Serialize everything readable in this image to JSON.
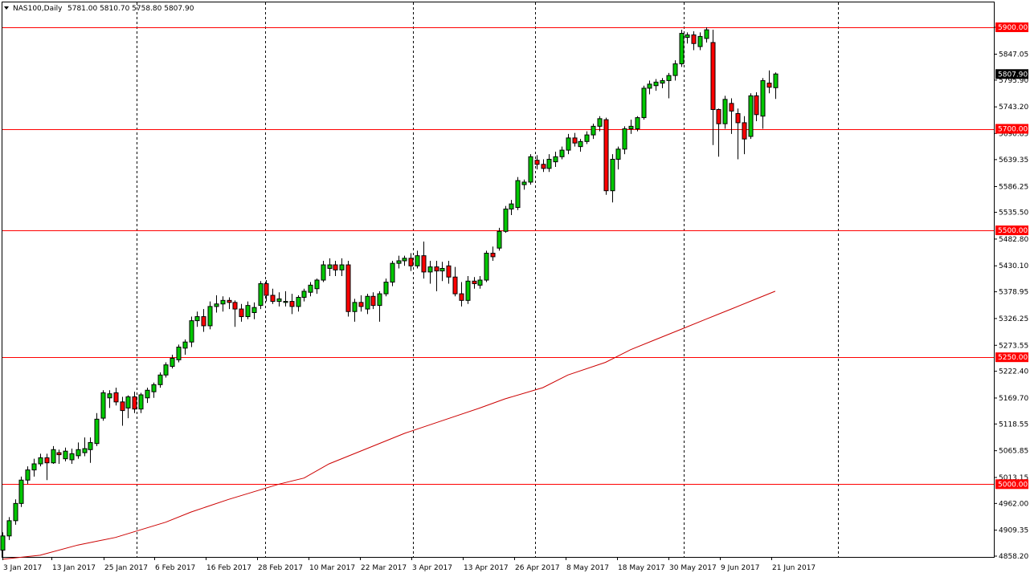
{
  "header": {
    "symbol_timeframe": "NAS100,Daily",
    "ohlc": "5781.00 5810.70 5758.80 5807.90"
  },
  "current_price": "5807.90",
  "colors": {
    "bull": "#00c800",
    "bear": "#ff0000",
    "ma": "#cc0000",
    "level": "#ff0000",
    "grid": "#000000",
    "background": "#ffffff",
    "current_label_bg": "#000000"
  },
  "price_scale": [
    "5900.00",
    "5847.05",
    "5795.90",
    "5743.20",
    "5690.85",
    "5639.35",
    "5586.25",
    "5535.50",
    "5482.80",
    "5430.10",
    "5378.95",
    "5326.25",
    "5273.55",
    "5222.40",
    "5169.70",
    "5118.55",
    "5065.85",
    "5013.15",
    "4962.00",
    "4909.35",
    "4858.20"
  ],
  "date_labels": [
    "3 Jan 2017",
    "13 Jan 2017",
    "25 Jan 2017",
    "6 Feb 2017",
    "16 Feb 2017",
    "28 Feb 2017",
    "10 Mar 2017",
    "22 Mar 2017",
    "3 Apr 2017",
    "13 Apr 2017",
    "26 Apr 2017",
    "8 May 2017",
    "18 May 2017",
    "30 May 2017",
    "9 Jun 2017",
    "21 Jun 2017"
  ],
  "chart_data": {
    "type": "candlestick",
    "title": "NAS100,Daily",
    "ylim": [
      4850,
      5935
    ],
    "x_dates": [
      "3 Jan 2017",
      "13 Jan 2017",
      "25 Jan 2017",
      "6 Feb 2017",
      "16 Feb 2017",
      "28 Feb 2017",
      "10 Mar 2017",
      "22 Mar 2017",
      "3 Apr 2017",
      "13 Apr 2017",
      "26 Apr 2017",
      "8 May 2017",
      "18 May 2017",
      "30 May 2017",
      "9 Jun 2017",
      "21 Jun 2017"
    ],
    "period_separators": [
      "25 Jan 2017",
      "28 Feb 2017",
      "3 Apr 2017",
      "26 Apr 2017",
      "30 May 2017",
      "Jul 2017"
    ],
    "horizontal_levels": [
      {
        "label": "5900.00",
        "value": 5900
      },
      {
        "label": "5700.00",
        "value": 5700
      },
      {
        "label": "5500.00",
        "value": 5500
      },
      {
        "label": "5250.00",
        "value": 5250
      },
      {
        "label": "5000.00",
        "value": 5000
      }
    ],
    "candles": [
      {
        "o": 4870,
        "h": 4905,
        "l": 4856,
        "c": 4898
      },
      {
        "o": 4898,
        "h": 4935,
        "l": 4890,
        "c": 4928
      },
      {
        "o": 4928,
        "h": 4970,
        "l": 4920,
        "c": 4962
      },
      {
        "o": 4962,
        "h": 5015,
        "l": 4955,
        "c": 5008
      },
      {
        "o": 5008,
        "h": 5035,
        "l": 5000,
        "c": 5028
      },
      {
        "o": 5028,
        "h": 5050,
        "l": 5015,
        "c": 5040
      },
      {
        "o": 5040,
        "h": 5060,
        "l": 5035,
        "c": 5052
      },
      {
        "o": 5052,
        "h": 5060,
        "l": 5008,
        "c": 5042
      },
      {
        "o": 5042,
        "h": 5075,
        "l": 5040,
        "c": 5068
      },
      {
        "o": 5062,
        "h": 5068,
        "l": 5040,
        "c": 5058
      },
      {
        "o": 5050,
        "h": 5072,
        "l": 5045,
        "c": 5065
      },
      {
        "o": 5048,
        "h": 5070,
        "l": 5040,
        "c": 5060
      },
      {
        "o": 5056,
        "h": 5082,
        "l": 5050,
        "c": 5068
      },
      {
        "o": 5062,
        "h": 5092,
        "l": 5055,
        "c": 5070
      },
      {
        "o": 5068,
        "h": 5092,
        "l": 5042,
        "c": 5082
      },
      {
        "o": 5080,
        "h": 5140,
        "l": 5075,
        "c": 5128
      },
      {
        "o": 5130,
        "h": 5185,
        "l": 5125,
        "c": 5180
      },
      {
        "o": 5170,
        "h": 5185,
        "l": 5150,
        "c": 5178
      },
      {
        "o": 5180,
        "h": 5190,
        "l": 5155,
        "c": 5162
      },
      {
        "o": 5162,
        "h": 5172,
        "l": 5115,
        "c": 5145
      },
      {
        "o": 5150,
        "h": 5175,
        "l": 5130,
        "c": 5172
      },
      {
        "o": 5172,
        "h": 5182,
        "l": 5140,
        "c": 5148
      },
      {
        "o": 5148,
        "h": 5180,
        "l": 5140,
        "c": 5176
      },
      {
        "o": 5170,
        "h": 5190,
        "l": 5160,
        "c": 5185
      },
      {
        "o": 5182,
        "h": 5200,
        "l": 5170,
        "c": 5196
      },
      {
        "o": 5196,
        "h": 5220,
        "l": 5190,
        "c": 5215
      },
      {
        "o": 5215,
        "h": 5240,
        "l": 5210,
        "c": 5235
      },
      {
        "o": 5232,
        "h": 5255,
        "l": 5228,
        "c": 5248
      },
      {
        "o": 5245,
        "h": 5275,
        "l": 5240,
        "c": 5270
      },
      {
        "o": 5268,
        "h": 5285,
        "l": 5255,
        "c": 5280
      },
      {
        "o": 5280,
        "h": 5330,
        "l": 5270,
        "c": 5322
      },
      {
        "o": 5322,
        "h": 5340,
        "l": 5310,
        "c": 5330
      },
      {
        "o": 5330,
        "h": 5345,
        "l": 5300,
        "c": 5312
      },
      {
        "o": 5312,
        "h": 5360,
        "l": 5305,
        "c": 5350
      },
      {
        "o": 5350,
        "h": 5372,
        "l": 5338,
        "c": 5355
      },
      {
        "o": 5355,
        "h": 5370,
        "l": 5340,
        "c": 5362
      },
      {
        "o": 5362,
        "h": 5368,
        "l": 5345,
        "c": 5358
      },
      {
        "o": 5358,
        "h": 5362,
        "l": 5310,
        "c": 5345
      },
      {
        "o": 5345,
        "h": 5355,
        "l": 5320,
        "c": 5330
      },
      {
        "o": 5330,
        "h": 5360,
        "l": 5325,
        "c": 5352
      },
      {
        "o": 5338,
        "h": 5358,
        "l": 5325,
        "c": 5348
      },
      {
        "o": 5352,
        "h": 5400,
        "l": 5345,
        "c": 5395
      },
      {
        "o": 5395,
        "h": 5402,
        "l": 5360,
        "c": 5372
      },
      {
        "o": 5372,
        "h": 5385,
        "l": 5355,
        "c": 5360
      },
      {
        "o": 5360,
        "h": 5378,
        "l": 5350,
        "c": 5365
      },
      {
        "o": 5358,
        "h": 5380,
        "l": 5350,
        "c": 5360
      },
      {
        "o": 5360,
        "h": 5375,
        "l": 5335,
        "c": 5350
      },
      {
        "o": 5350,
        "h": 5372,
        "l": 5340,
        "c": 5368
      },
      {
        "o": 5368,
        "h": 5385,
        "l": 5360,
        "c": 5380
      },
      {
        "o": 5378,
        "h": 5398,
        "l": 5370,
        "c": 5392
      },
      {
        "o": 5385,
        "h": 5405,
        "l": 5375,
        "c": 5402
      },
      {
        "o": 5402,
        "h": 5440,
        "l": 5398,
        "c": 5432
      },
      {
        "o": 5425,
        "h": 5445,
        "l": 5410,
        "c": 5432
      },
      {
        "o": 5432,
        "h": 5440,
        "l": 5410,
        "c": 5422
      },
      {
        "o": 5422,
        "h": 5445,
        "l": 5410,
        "c": 5432
      },
      {
        "o": 5432,
        "h": 5440,
        "l": 5330,
        "c": 5340
      },
      {
        "o": 5340,
        "h": 5365,
        "l": 5320,
        "c": 5358
      },
      {
        "o": 5358,
        "h": 5372,
        "l": 5340,
        "c": 5350
      },
      {
        "o": 5345,
        "h": 5375,
        "l": 5335,
        "c": 5370
      },
      {
        "o": 5370,
        "h": 5378,
        "l": 5345,
        "c": 5352
      },
      {
        "o": 5352,
        "h": 5380,
        "l": 5320,
        "c": 5375
      },
      {
        "o": 5375,
        "h": 5405,
        "l": 5370,
        "c": 5398
      },
      {
        "o": 5398,
        "h": 5440,
        "l": 5390,
        "c": 5435
      },
      {
        "o": 5435,
        "h": 5450,
        "l": 5425,
        "c": 5440
      },
      {
        "o": 5440,
        "h": 5450,
        "l": 5430,
        "c": 5445
      },
      {
        "o": 5445,
        "h": 5455,
        "l": 5420,
        "c": 5430
      },
      {
        "o": 5430,
        "h": 5460,
        "l": 5425,
        "c": 5450
      },
      {
        "o": 5450,
        "h": 5478,
        "l": 5405,
        "c": 5418
      },
      {
        "o": 5418,
        "h": 5440,
        "l": 5395,
        "c": 5428
      },
      {
        "o": 5428,
        "h": 5440,
        "l": 5380,
        "c": 5420
      },
      {
        "o": 5420,
        "h": 5438,
        "l": 5400,
        "c": 5425
      },
      {
        "o": 5430,
        "h": 5440,
        "l": 5395,
        "c": 5408
      },
      {
        "o": 5408,
        "h": 5428,
        "l": 5370,
        "c": 5375
      },
      {
        "o": 5375,
        "h": 5398,
        "l": 5350,
        "c": 5362
      },
      {
        "o": 5362,
        "h": 5410,
        "l": 5355,
        "c": 5400
      },
      {
        "o": 5400,
        "h": 5408,
        "l": 5385,
        "c": 5395
      },
      {
        "o": 5392,
        "h": 5410,
        "l": 5385,
        "c": 5402
      },
      {
        "o": 5402,
        "h": 5460,
        "l": 5398,
        "c": 5455
      },
      {
        "o": 5455,
        "h": 5468,
        "l": 5440,
        "c": 5448
      },
      {
        "o": 5465,
        "h": 5505,
        "l": 5460,
        "c": 5498
      },
      {
        "o": 5498,
        "h": 5548,
        "l": 5495,
        "c": 5542
      },
      {
        "o": 5542,
        "h": 5560,
        "l": 5530,
        "c": 5552
      },
      {
        "o": 5545,
        "h": 5605,
        "l": 5540,
        "c": 5598
      },
      {
        "o": 5590,
        "h": 5600,
        "l": 5580,
        "c": 5595
      },
      {
        "o": 5595,
        "h": 5650,
        "l": 5590,
        "c": 5645
      },
      {
        "o": 5638,
        "h": 5648,
        "l": 5620,
        "c": 5630
      },
      {
        "o": 5630,
        "h": 5640,
        "l": 5615,
        "c": 5622
      },
      {
        "o": 5622,
        "h": 5650,
        "l": 5615,
        "c": 5640
      },
      {
        "o": 5635,
        "h": 5655,
        "l": 5625,
        "c": 5645
      },
      {
        "o": 5645,
        "h": 5665,
        "l": 5640,
        "c": 5658
      },
      {
        "o": 5658,
        "h": 5690,
        "l": 5650,
        "c": 5682
      },
      {
        "o": 5682,
        "h": 5692,
        "l": 5665,
        "c": 5672
      },
      {
        "o": 5665,
        "h": 5680,
        "l": 5655,
        "c": 5675
      },
      {
        "o": 5675,
        "h": 5695,
        "l": 5670,
        "c": 5688
      },
      {
        "o": 5688,
        "h": 5710,
        "l": 5680,
        "c": 5705
      },
      {
        "o": 5705,
        "h": 5725,
        "l": 5695,
        "c": 5720
      },
      {
        "o": 5718,
        "h": 5722,
        "l": 5570,
        "c": 5578
      },
      {
        "o": 5578,
        "h": 5650,
        "l": 5555,
        "c": 5640
      },
      {
        "o": 5640,
        "h": 5665,
        "l": 5620,
        "c": 5660
      },
      {
        "o": 5660,
        "h": 5705,
        "l": 5650,
        "c": 5700
      },
      {
        "o": 5700,
        "h": 5718,
        "l": 5690,
        "c": 5705
      },
      {
        "o": 5700,
        "h": 5725,
        "l": 5695,
        "c": 5722
      },
      {
        "o": 5722,
        "h": 5785,
        "l": 5718,
        "c": 5780
      },
      {
        "o": 5780,
        "h": 5795,
        "l": 5768,
        "c": 5788
      },
      {
        "o": 5785,
        "h": 5798,
        "l": 5775,
        "c": 5792
      },
      {
        "o": 5790,
        "h": 5800,
        "l": 5780,
        "c": 5795
      },
      {
        "o": 5795,
        "h": 5810,
        "l": 5760,
        "c": 5805
      },
      {
        "o": 5805,
        "h": 5835,
        "l": 5795,
        "c": 5828
      },
      {
        "o": 5828,
        "h": 5895,
        "l": 5822,
        "c": 5888
      },
      {
        "o": 5880,
        "h": 5890,
        "l": 5868,
        "c": 5885
      },
      {
        "o": 5885,
        "h": 5892,
        "l": 5855,
        "c": 5868
      },
      {
        "o": 5862,
        "h": 5890,
        "l": 5855,
        "c": 5882
      },
      {
        "o": 5878,
        "h": 5900,
        "l": 5870,
        "c": 5895
      },
      {
        "o": 5870,
        "h": 5895,
        "l": 5668,
        "c": 5738
      },
      {
        "o": 5738,
        "h": 5740,
        "l": 5645,
        "c": 5710
      },
      {
        "o": 5710,
        "h": 5765,
        "l": 5700,
        "c": 5758
      },
      {
        "o": 5750,
        "h": 5760,
        "l": 5690,
        "c": 5735
      },
      {
        "o": 5730,
        "h": 5740,
        "l": 5640,
        "c": 5712
      },
      {
        "o": 5712,
        "h": 5725,
        "l": 5650,
        "c": 5680
      },
      {
        "o": 5685,
        "h": 5770,
        "l": 5680,
        "c": 5765
      },
      {
        "o": 5765,
        "h": 5772,
        "l": 5715,
        "c": 5728
      },
      {
        "o": 5725,
        "h": 5800,
        "l": 5700,
        "c": 5795
      },
      {
        "o": 5790,
        "h": 5815,
        "l": 5770,
        "c": 5782
      },
      {
        "o": 5781,
        "h": 5811,
        "l": 5759,
        "c": 5808
      }
    ],
    "moving_average": [
      [
        0,
        4852
      ],
      [
        6,
        4860
      ],
      [
        12,
        4880
      ],
      [
        18,
        4895
      ],
      [
        22,
        4910
      ],
      [
        26,
        4925
      ],
      [
        30,
        4945
      ],
      [
        36,
        4970
      ],
      [
        40,
        4985
      ],
      [
        44,
        5000
      ],
      [
        48,
        5012
      ],
      [
        52,
        5040
      ],
      [
        58,
        5070
      ],
      [
        64,
        5100
      ],
      [
        70,
        5125
      ],
      [
        76,
        5150
      ],
      [
        80,
        5168
      ],
      [
        86,
        5190
      ],
      [
        90,
        5215
      ],
      [
        96,
        5240
      ],
      [
        100,
        5265
      ],
      [
        104,
        5285
      ],
      [
        108,
        5305
      ],
      [
        112,
        5325
      ],
      [
        116,
        5345
      ],
      [
        120,
        5365
      ],
      [
        123,
        5380
      ]
    ]
  }
}
